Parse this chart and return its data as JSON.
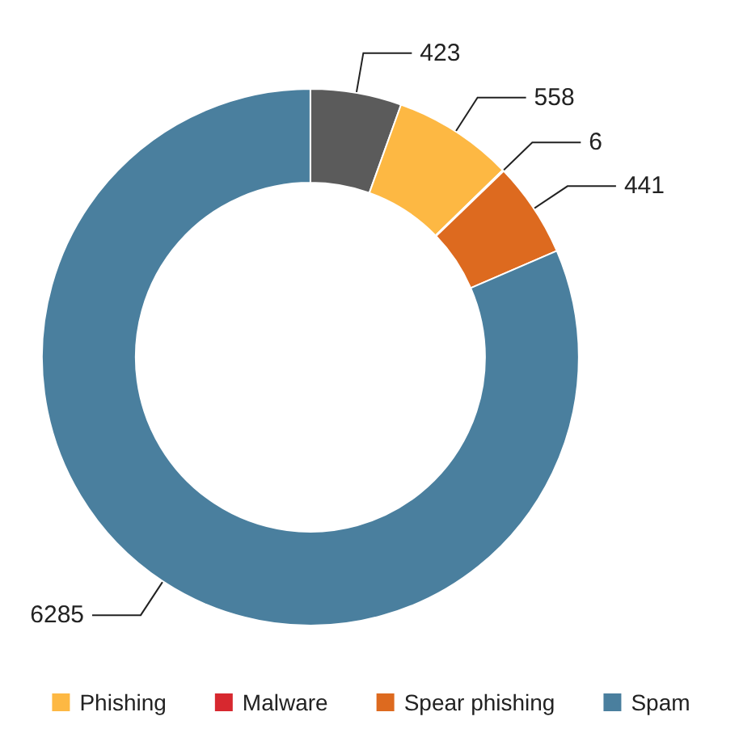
{
  "chart_data": {
    "type": "donut",
    "categories": [
      null,
      "Phishing",
      "Malware",
      "Spear phishing",
      "Spam"
    ],
    "values": [
      423,
      558,
      6,
      441,
      6285
    ],
    "colors": [
      "#5b5b5b",
      "#fdb843",
      "#d7282f",
      "#dd6a1f",
      "#4a7f9e"
    ],
    "data_labels": true,
    "legend": "bottom"
  }
}
